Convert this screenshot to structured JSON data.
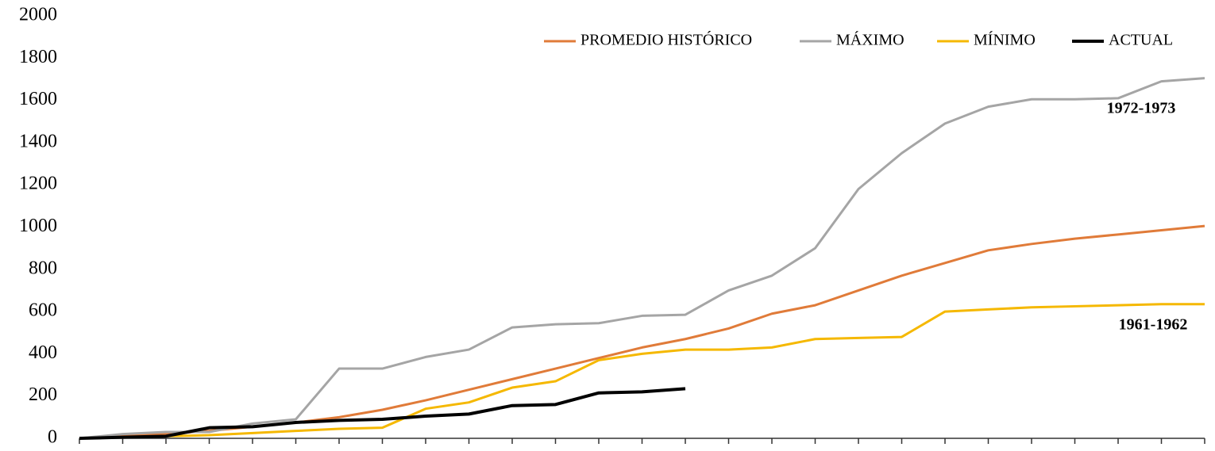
{
  "chart_data": {
    "type": "line",
    "x": [
      0,
      1,
      2,
      3,
      4,
      5,
      6,
      7,
      8,
      9,
      10,
      11,
      12,
      13,
      14,
      15,
      16,
      17,
      18,
      19,
      20,
      21,
      22,
      23,
      24,
      25,
      26
    ],
    "xlim": [
      0,
      26
    ],
    "xticks": [
      0,
      1,
      2,
      3,
      4,
      5,
      6,
      7,
      8,
      9,
      10,
      11,
      12,
      13,
      14,
      15,
      16,
      17,
      18,
      19,
      20,
      21,
      22,
      23,
      24,
      25,
      26
    ],
    "ylim": [
      0,
      2000
    ],
    "yticks": [
      0,
      200,
      400,
      600,
      800,
      1000,
      1200,
      1400,
      1600,
      1800,
      2000
    ],
    "legend": "top-right",
    "series": [
      {
        "name": "PROMEDIO HISTÓRICO",
        "color": "#e07b39",
        "values": [
          0,
          10,
          20,
          35,
          55,
          75,
          100,
          135,
          180,
          230,
          280,
          330,
          380,
          430,
          470,
          520,
          590,
          630,
          700,
          770,
          830,
          890,
          920,
          945,
          965,
          985,
          1005
        ]
      },
      {
        "name": "MÁXIMO",
        "color": "#a5a5a5",
        "values": [
          0,
          20,
          30,
          30,
          70,
          90,
          330,
          330,
          385,
          420,
          525,
          540,
          545,
          580,
          585,
          700,
          770,
          900,
          1180,
          1350,
          1490,
          1570,
          1605,
          1605,
          1610,
          1690,
          1705
        ]
      },
      {
        "name": "MÍNIMO",
        "color": "#f5b800",
        "values": [
          0,
          5,
          10,
          15,
          25,
          35,
          45,
          50,
          140,
          170,
          240,
          270,
          370,
          400,
          420,
          420,
          430,
          470,
          475,
          480,
          600,
          610,
          620,
          625,
          630,
          635,
          635
        ]
      },
      {
        "name": "ACTUAL",
        "color": "#000000",
        "values": [
          0,
          5,
          10,
          50,
          55,
          75,
          85,
          90,
          105,
          115,
          155,
          160,
          215,
          220,
          235,
          null,
          null,
          null,
          null,
          null,
          null,
          null,
          null,
          null,
          null,
          null,
          null
        ]
      }
    ],
    "annotations": [
      "1972-1973",
      "1961-1962"
    ]
  }
}
